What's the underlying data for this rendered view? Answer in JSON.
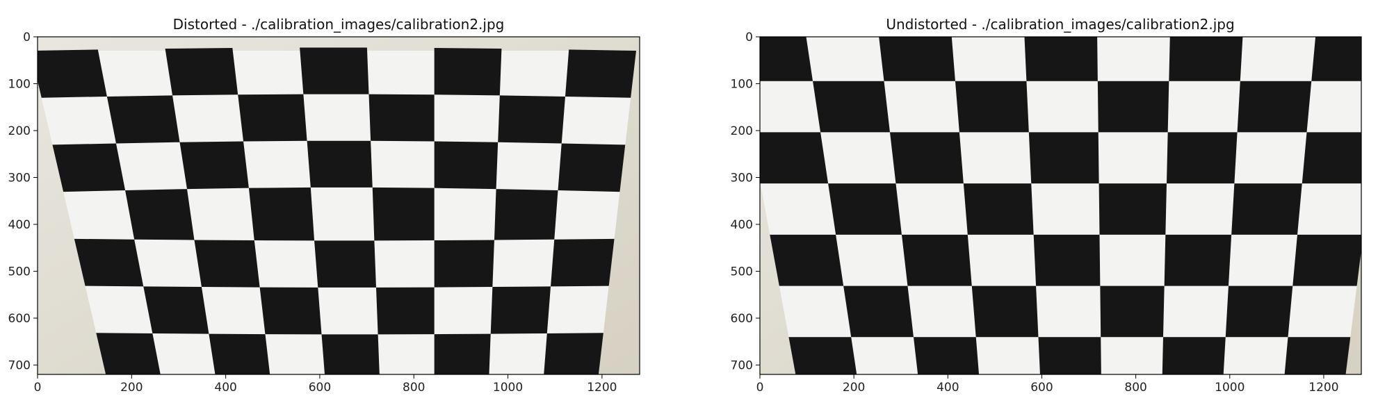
{
  "panels": [
    {
      "title": "Distorted - ./calibration_images/calibration2.jpg",
      "xticks": [
        "0",
        "200",
        "400",
        "600",
        "800",
        "1000",
        "1200"
      ],
      "yticks": [
        "0",
        "100",
        "200",
        "300",
        "400",
        "500",
        "600",
        "700"
      ]
    },
    {
      "title": "Undistorted - ./calibration_images/calibration2.jpg",
      "xticks": [
        "0",
        "200",
        "400",
        "600",
        "800",
        "1000",
        "1200"
      ],
      "yticks": [
        "0",
        "100",
        "200",
        "300",
        "400",
        "500",
        "600",
        "700"
      ]
    }
  ],
  "image_subject": "checkerboard calibration pattern on a white wall",
  "colors": {
    "dark_square": "#161616",
    "paper": "#f3f3f1",
    "wall": "#dcd8cc",
    "frame": "#000000"
  }
}
